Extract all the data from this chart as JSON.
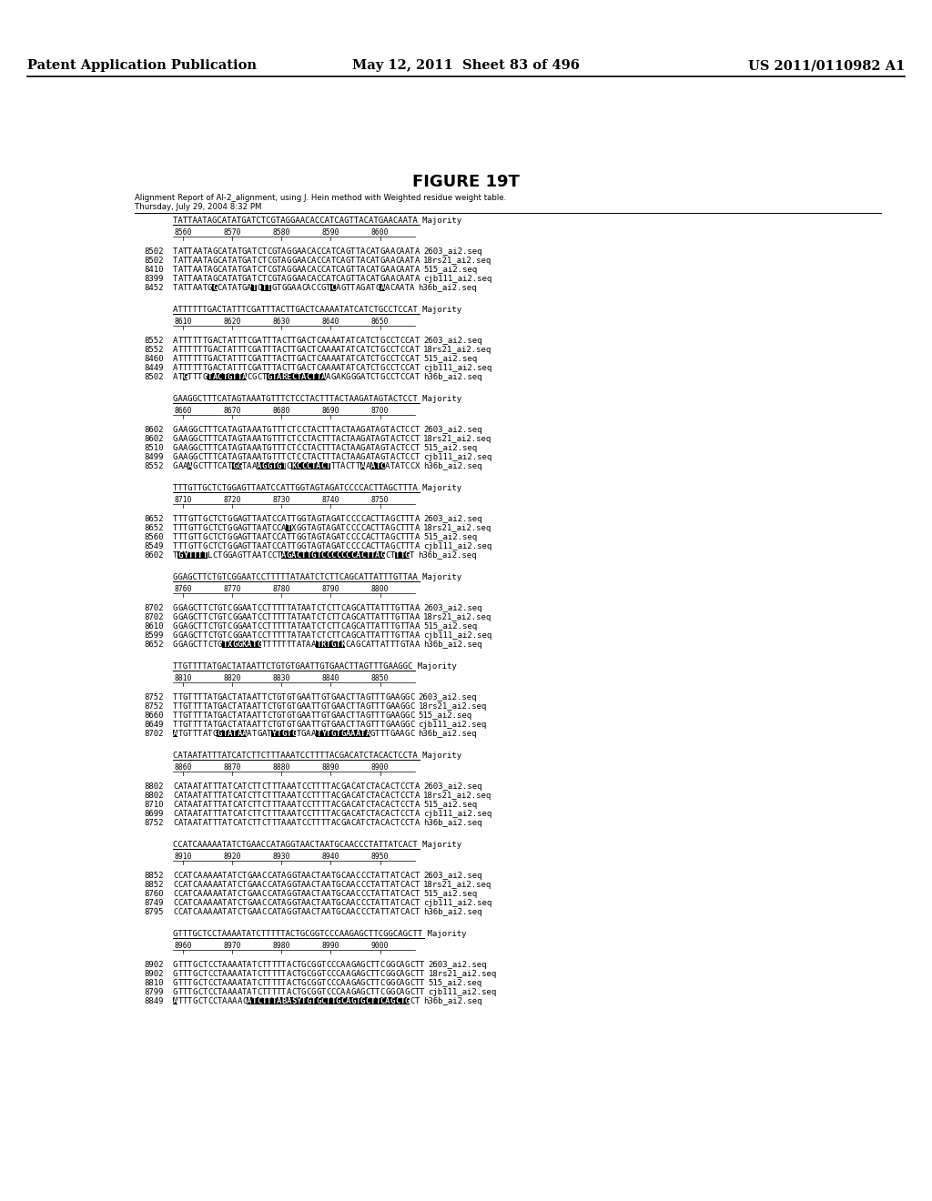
{
  "header_left": "Patent Application Publication",
  "header_center": "May 12, 2011  Sheet 83 of 496",
  "header_right": "US 2011/0110982 A1",
  "figure_title": "FIGURE 19T",
  "subtitle1": "Alignment Report of AI-2_alignment, using J. Hein method with Weighted residue weight table.",
  "subtitle2": "Thursday, July 29, 2004 8:32 PM",
  "blocks": [
    {
      "majority_seq": "TATTAATAGCATATGATCTCGTAGGAACACCATCAGTTACATGAACAATA",
      "ruler_ticks": [
        "8560",
        "8570",
        "8580",
        "8590",
        "8600"
      ],
      "seqs": [
        {
          "num": "8502",
          "seq": "TATTAATAGCATATGATCTCGTAGGAACACCATCAGTTACATGAACAATA",
          "name": "2603_ai2.seq",
          "highlights": []
        },
        {
          "num": "8502",
          "seq": "TATTAATAGCATATGATCTCGTAGGAACACCATCAGTTACATGAACAATA",
          "name": "18rs21_ai2.seq",
          "highlights": []
        },
        {
          "num": "8410",
          "seq": "TATTAATAGCATATGATCTCGTAGGAACACCATCAGTTACATGAACAATA",
          "name": "515_ai2.seq",
          "highlights": []
        },
        {
          "num": "8399",
          "seq": "TATTAATAGCATATGATCTCGTAGGAACACCATCAGTTACATGAACAATA",
          "name": "cjb111_ai2.seq",
          "highlights": []
        },
        {
          "num": "8452",
          "seq": "TATTAATGGCATATGATCTTGTGGAACACCGTCAGTTAGATGAACAATA",
          "name": "h36b_ai2.seq",
          "highlights": [
            8,
            16,
            18,
            19,
            32,
            42
          ]
        }
      ]
    },
    {
      "majority_seq": "ATTTTTTGACTATTTCGATTTACTTGACTCAAAATATCATCTGCCTCCAT",
      "ruler_ticks": [
        "8610",
        "8620",
        "8630",
        "8640",
        "8650"
      ],
      "seqs": [
        {
          "num": "8552",
          "seq": "ATTTTTTGACTATTTCGATTTACTTGACTCAAAATATCATCTGCCTCCAT",
          "name": "2603_ai2.seq",
          "highlights": []
        },
        {
          "num": "8552",
          "seq": "ATTTTTTGACTATTTCGATTTACTTGACTCAAAATATCATCTGCCTCCAT",
          "name": "18rs21_ai2.seq",
          "highlights": []
        },
        {
          "num": "8460",
          "seq": "ATTTTTTGACTATTTCGATTTACTTGACTCAAAATATCATCTGCCTCCAT",
          "name": "515_ai2.seq",
          "highlights": []
        },
        {
          "num": "8449",
          "seq": "ATTTTTTGACTATTTCGATTTACTTGACTCAAAATATCATCTGCCTCCAT",
          "name": "cjb111_ai2.seq",
          "highlights": []
        },
        {
          "num": "8502",
          "seq": "ATGTTTGTACTGTTACGCTGTARECTACTTAAGAKGGGATCTGCCTCCAT",
          "name": "h36b_ai2.seq",
          "highlights": [
            2,
            7,
            8,
            9,
            10,
            11,
            12,
            13,
            14,
            19,
            20,
            21,
            22,
            23,
            24,
            25,
            26,
            27,
            28,
            29,
            30
          ]
        }
      ]
    },
    {
      "majority_seq": "GAAGGCTTTCATAGTAAATGTTTCTCCTACTTTACTAAGATAGTACTCCT",
      "ruler_ticks": [
        "8660",
        "8670",
        "8680",
        "8690",
        "8700"
      ],
      "seqs": [
        {
          "num": "8602",
          "seq": "GAAGGCTTTCATAGTAAATGTTTCTCCTACTTTACTAAGATAGTACTCCT",
          "name": "2603_ai2.seq",
          "highlights": []
        },
        {
          "num": "8602",
          "seq": "GAAGGCTTTCATAGTAAATGTTTCTCCTACTTTACTAAGATAGTACTCCT",
          "name": "18rs21_ai2.seq",
          "highlights": []
        },
        {
          "num": "8510",
          "seq": "GAAGGCTTTCATAGTAAATGTTTCTCCTACTTTACTAAGATAGTACTCCT",
          "name": "515_ai2.seq",
          "highlights": []
        },
        {
          "num": "8499",
          "seq": "GAAGGCTTTCATAGTAAATGTTTCTCCTACTTTACTAAGATAGTACTCCT",
          "name": "cjb111_ai2.seq",
          "highlights": []
        },
        {
          "num": "8552",
          "seq": "GAAAGCTTTCATGGTAAAGGTGTCKCCCTACTTTACTTAAATCATATCCX",
          "name": "h36b_ai2.seq",
          "highlights": [
            3,
            12,
            13,
            17,
            18,
            19,
            20,
            21,
            22,
            24,
            25,
            26,
            27,
            28,
            29,
            30,
            31,
            38,
            40,
            41,
            42
          ]
        }
      ]
    },
    {
      "majority_seq": "TTTGTTGCTCTGGAGTTAATCCATTGGTAGTAGATCCCCACTTAGCTTTA",
      "ruler_ticks": [
        "8710",
        "8720",
        "8730",
        "8740",
        "8750"
      ],
      "seqs": [
        {
          "num": "8652",
          "seq": "TTTGTTGCTCTGGAGTTAATCCATTGGTAGTAGATCCCCACTTAGCTTTA",
          "name": "2603_ai2.seq",
          "highlights": []
        },
        {
          "num": "8652",
          "seq": "TTTGTTGCTCTGGAGTTAATCCATXGGTAGTAGATCCCCACTTAGCTTTA",
          "name": "18rs21_ai2.seq",
          "highlights": [
            23
          ]
        },
        {
          "num": "8560",
          "seq": "TTTGTTGCTCTGGAGTTAATCCATTGGTAGTAGATCCCCACTTAGCTTTA",
          "name": "515_ai2.seq",
          "highlights": []
        },
        {
          "num": "8549",
          "seq": "TTTGTTGCTCTGGAGTTAATCCATTGGTAGTAGATCCCCACTTAGCTTTA",
          "name": "cjb111_ai2.seq",
          "highlights": []
        },
        {
          "num": "8602",
          "seq": "TGYTTTTLCTGGAGTTAATCCTAGACTTGTCCCCCCCACTTAGCTTTGT",
          "name": "h36b_ai2.seq",
          "highlights": [
            1,
            2,
            3,
            4,
            5,
            6,
            22,
            23,
            24,
            25,
            26,
            27,
            28,
            29,
            30,
            31,
            32,
            33,
            34,
            35,
            36,
            37,
            38,
            39,
            40,
            41,
            42,
            45,
            46,
            47
          ]
        }
      ]
    },
    {
      "majority_seq": "GGAGCTTCTGTCGGAATCCTTTTTATAATCTCTTCAGCATTATTTGTTAA",
      "ruler_ticks": [
        "8760",
        "8770",
        "8780",
        "8790",
        "8800"
      ],
      "seqs": [
        {
          "num": "8702",
          "seq": "GGAGCTTCTGTCGGAATCCTTTTTATAATCTCTTCAGCATTATTTGTTAA",
          "name": "2603_ai2.seq",
          "highlights": []
        },
        {
          "num": "8702",
          "seq": "GGAGCTTCTGTCGGAATCCTTTTTATAATCTCTTCAGCATTATTTGTTAA",
          "name": "18rs21_ai2.seq",
          "highlights": []
        },
        {
          "num": "8610",
          "seq": "GGAGCTTCTGTCGGAATCCTTTTTATAATCTCTTCAGCATTATTTGTTAA",
          "name": "515_ai2.seq",
          "highlights": []
        },
        {
          "num": "8599",
          "seq": "GGAGCTTCTGTCGGAATCCTTTTTATAATCTCTTCAGCATTATTTGTTAA",
          "name": "cjb111_ai2.seq",
          "highlights": []
        },
        {
          "num": "8652",
          "seq": "GGAGCTTCTGTXGGKATGTTTTTTTATAATRTGTKCAGCATTATTTGTAA",
          "name": "h36b_ai2.seq",
          "highlights": [
            10,
            11,
            12,
            13,
            14,
            15,
            16,
            17,
            29,
            30,
            31,
            32,
            33,
            34
          ]
        }
      ]
    },
    {
      "majority_seq": "TTGTTTTATGACTATAATTCTGTGTGAATTGTGAACTTAGTTTGAAGGC",
      "ruler_ticks": [
        "8810",
        "8820",
        "8830",
        "8840",
        "8850"
      ],
      "seqs": [
        {
          "num": "8752",
          "seq": "TTGTTTTATGACTATAATTCTGTGTGAATTGTGAACTTAGTTTGAAGGC",
          "name": "2603_ai2.seq",
          "highlights": []
        },
        {
          "num": "8752",
          "seq": "TTGTTTTATGACTATAATTCTGTGTGAATTGTGAACTTAGTTTGAAGGC",
          "name": "18rs21_ai2.seq",
          "highlights": []
        },
        {
          "num": "8660",
          "seq": "TTGTTTTATGACTATAATTCTGTGTGAATTGTGAACTTAGTTTGAAGGC",
          "name": "515_ai2.seq",
          "highlights": []
        },
        {
          "num": "8649",
          "seq": "TTGTTTTATGACTATAATTCTGTGTGAATTGTGAACTTAGTTTGAAGGC",
          "name": "cjb111_ai2.seq",
          "highlights": []
        },
        {
          "num": "8702",
          "seq": "ATGTTTATGGTATAAATGATYTGTGTGAATYTGTGAAATAGTTTGAAGC",
          "name": "h36b_ai2.seq",
          "highlights": [
            0,
            9,
            10,
            11,
            12,
            13,
            14,
            20,
            21,
            22,
            23,
            24,
            29,
            30,
            31,
            32,
            33,
            34,
            35,
            36,
            37,
            38,
            39
          ]
        }
      ]
    },
    {
      "majority_seq": "CATAATATTTATCATCTTCTTTAAATCCTTTTACGACATCTACACTCCTA",
      "ruler_ticks": [
        "8860",
        "8870",
        "8880",
        "8890",
        "8900"
      ],
      "seqs": [
        {
          "num": "8802",
          "seq": "CATAATATTTATCATCTTCTTTAAATCCTTTTACGACATCTACACTCCTA",
          "name": "2603_ai2.seq",
          "highlights": []
        },
        {
          "num": "8802",
          "seq": "CATAATATTTATCATCTTCTTTAAATCCTTTTACGACATCTACACTCCTA",
          "name": "18rs21_ai2.seq",
          "highlights": []
        },
        {
          "num": "8710",
          "seq": "CATAATATTTATCATCTTCTTTAAATCCTTTTACGACATCTACACTCCTA",
          "name": "515_ai2.seq",
          "highlights": []
        },
        {
          "num": "8699",
          "seq": "CATAATATTTATCATCTTCTTTAAATCCTTTTACGACATCTACACTCCTA",
          "name": "cjb111_ai2.seq",
          "highlights": []
        },
        {
          "num": "8752",
          "seq": "CATAATATTTATCATCTTCTTTAAATCCTTTTACGACATCTACACTCCTA",
          "name": "h36b_ai2.seq",
          "highlights": []
        }
      ]
    },
    {
      "majority_seq": "CCATCAAAAATATCTGAACCATAGGTAACTAATGCAACCCTATTATCACT",
      "ruler_ticks": [
        "8910",
        "8920",
        "8930",
        "8940",
        "8950"
      ],
      "seqs": [
        {
          "num": "8852",
          "seq": "CCATCAAAAATATCTGAACCATAGGTAACTAATGCAACCCTATTATCACT",
          "name": "2603_ai2.seq",
          "highlights": []
        },
        {
          "num": "8852",
          "seq": "CCATCAAAAATATCTGAACCATAGGTAACTAATGCAACCCTATTATCACT",
          "name": "18rs21_ai2.seq",
          "highlights": []
        },
        {
          "num": "8760",
          "seq": "CCATCAAAAATATCTGAACCATAGGTAACTAATGCAACCCTATTATCACT",
          "name": "515_ai2.seq",
          "highlights": []
        },
        {
          "num": "8749",
          "seq": "CCATCAAAAATATCTGAACCATAGGTAACTAATGCAACCCTATTATCACT",
          "name": "cjb111_ai2.seq",
          "highlights": []
        },
        {
          "num": "8795",
          "seq": "CCATCAAAAATATCTGAACCATAGGTAACTAATGCAACCCTATTATCACT",
          "name": "h36b_ai2.seq",
          "highlights": []
        }
      ]
    },
    {
      "majority_seq": "GTTTGCTCCTAAAATATCTTTTTACTGCGGTCCCAAGAGCTTCGGCAGCTT",
      "ruler_ticks": [
        "8960",
        "8970",
        "8980",
        "8990",
        "9000"
      ],
      "seqs": [
        {
          "num": "8902",
          "seq": "GTTTGCTCCTAAAATATCTTTTTACTGCGGTCCCAAGAGCTTCGGCAGCTT",
          "name": "2603_ai2.seq",
          "highlights": []
        },
        {
          "num": "8902",
          "seq": "GTTTGCTCCTAAAATATCTTTTTACTGCGGTCCCAAGAGCTTCGGCAGCTT",
          "name": "18rs21_ai2.seq",
          "highlights": []
        },
        {
          "num": "8810",
          "seq": "GTTTGCTCCTAAAATATCTTTTTACTGCGGTCCCAAGAGCTTCGGCAGCTT",
          "name": "515_ai2.seq",
          "highlights": []
        },
        {
          "num": "8799",
          "seq": "GTTTGCTCCTAAAATATCTTTTTACTGCGGTCCCAAGAGCTTCGGCAGCTT",
          "name": "cjb111_ai2.seq",
          "highlights": []
        },
        {
          "num": "8849",
          "seq": "ATTTGCTCCTAAAACATCTTTABASYTGTGCTTGCAGTGCTTCAGCTGCT",
          "name": "h36b_ai2.seq",
          "highlights": [
            0,
            15,
            16,
            17,
            18,
            19,
            20,
            21,
            22,
            23,
            24,
            25,
            26,
            27,
            28,
            29,
            30,
            31,
            32,
            33,
            34,
            35,
            36,
            37,
            38,
            39,
            40,
            41,
            42,
            43,
            44,
            45,
            46,
            47
          ]
        }
      ]
    }
  ]
}
